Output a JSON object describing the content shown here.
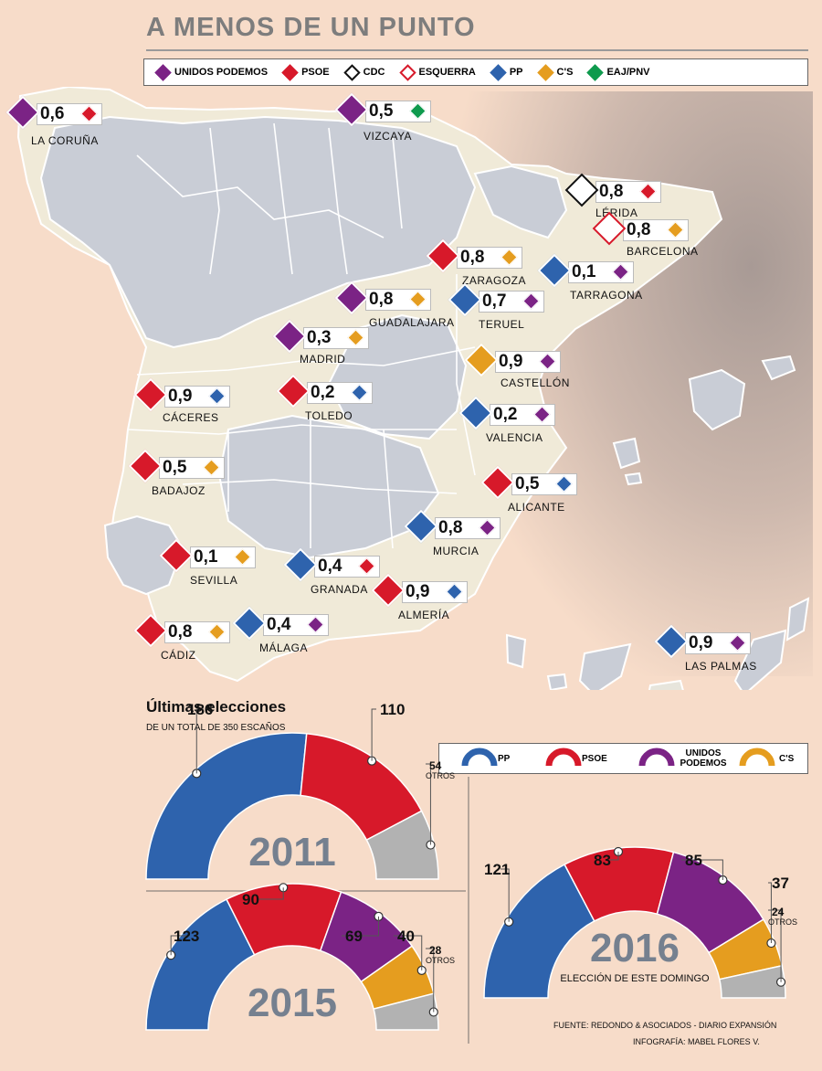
{
  "title": "A MENOS DE UN PUNTO",
  "colors": {
    "unidos_podemos": "#7b2385",
    "psoe": "#d7192a",
    "cdc": "#ffffff",
    "esquerra": "#ffffff",
    "pp": "#2e63ad",
    "cs": "#e59d1f",
    "eaj_pnv": "#0e9a4d",
    "otros": "#b2b2b2"
  },
  "legend": [
    {
      "label": "UNIDOS PODEMOS",
      "color": "#7b2385",
      "border": "#7b2385"
    },
    {
      "label": "PSOE",
      "color": "#d7192a",
      "border": "#d7192a"
    },
    {
      "label": "CDC",
      "color": "#ffffff",
      "border": "#111111"
    },
    {
      "label": "ESQUERRA",
      "color": "#ffffff",
      "border": "#d7192a"
    },
    {
      "label": "PP",
      "color": "#2e63ad",
      "border": "#2e63ad"
    },
    {
      "label": "C'S",
      "color": "#e59d1f",
      "border": "#e59d1f"
    },
    {
      "label": "EAJ/PNV",
      "color": "#0e9a4d",
      "border": "#0e9a4d"
    }
  ],
  "provinces": [
    {
      "city": "LA CORUÑA",
      "value": "0,6",
      "leader": "unidos_podemos",
      "second": "psoe"
    },
    {
      "city": "VIZCAYA",
      "value": "0,5",
      "leader": "unidos_podemos",
      "second": "eaj_pnv"
    },
    {
      "city": "LÉRIDA",
      "value": "0,8",
      "leader": "cdc",
      "second": "psoe"
    },
    {
      "city": "BARCELONA",
      "value": "0,8",
      "leader": "esquerra",
      "second": "cs"
    },
    {
      "city": "ZARAGOZA",
      "value": "0,8",
      "leader": "psoe",
      "second": "cs"
    },
    {
      "city": "TARRAGONA",
      "value": "0,1",
      "leader": "pp",
      "second": "unidos_podemos"
    },
    {
      "city": "GUADALAJARA",
      "value": "0,8",
      "leader": "unidos_podemos",
      "second": "cs"
    },
    {
      "city": "TERUEL",
      "value": "0,7",
      "leader": "pp",
      "second": "unidos_podemos"
    },
    {
      "city": "MADRID",
      "value": "0,3",
      "leader": "unidos_podemos",
      "second": "cs"
    },
    {
      "city": "CASTELLÓN",
      "value": "0,9",
      "leader": "cs",
      "second": "unidos_podemos"
    },
    {
      "city": "CÁCERES",
      "value": "0,9",
      "leader": "psoe",
      "second": "pp"
    },
    {
      "city": "TOLEDO",
      "value": "0,2",
      "leader": "psoe",
      "second": "pp"
    },
    {
      "city": "VALENCIA",
      "value": "0,2",
      "leader": "pp",
      "second": "unidos_podemos"
    },
    {
      "city": "BADAJOZ",
      "value": "0,5",
      "leader": "psoe",
      "second": "cs"
    },
    {
      "city": "ALICANTE",
      "value": "0,5",
      "leader": "psoe",
      "second": "pp"
    },
    {
      "city": "MURCIA",
      "value": "0,8",
      "leader": "pp",
      "second": "unidos_podemos"
    },
    {
      "city": "SEVILLA",
      "value": "0,1",
      "leader": "psoe",
      "second": "cs"
    },
    {
      "city": "GRANADA",
      "value": "0,4",
      "leader": "pp",
      "second": "psoe"
    },
    {
      "city": "ALMERÍA",
      "value": "0,9",
      "leader": "psoe",
      "second": "pp"
    },
    {
      "city": "CÁDIZ",
      "value": "0,8",
      "leader": "psoe",
      "second": "cs"
    },
    {
      "city": "MÁLAGA",
      "value": "0,4",
      "leader": "pp",
      "second": "unidos_podemos"
    },
    {
      "city": "LAS PALMAS",
      "value": "0,9",
      "leader": "pp",
      "second": "unidos_podemos"
    }
  ],
  "elections_title": "Últimas elecciones",
  "elections_subtitle": "DE UN TOTAL DE 350 ESCAÑOS",
  "legend2": [
    {
      "label": "PP",
      "color": "#2e63ad"
    },
    {
      "label": "PSOE",
      "color": "#d7192a"
    },
    {
      "label": "UNIDOS PODEMOS",
      "color": "#7b2385"
    },
    {
      "label": "C'S",
      "color": "#e59d1f"
    }
  ],
  "chart_data": [
    {
      "type": "semicircle",
      "title": "2011",
      "total": 350,
      "series": [
        {
          "name": "PP",
          "value": 186,
          "label": "186",
          "color": "#2e63ad"
        },
        {
          "name": "PSOE",
          "value": 110,
          "label": "110",
          "color": "#d7192a"
        },
        {
          "name": "OTROS",
          "value": 54,
          "label": "54",
          "color": "#b2b2b2"
        }
      ]
    },
    {
      "type": "semicircle",
      "title": "2015",
      "total": 350,
      "series": [
        {
          "name": "PP",
          "value": 123,
          "label": "123",
          "color": "#2e63ad"
        },
        {
          "name": "PSOE",
          "value": 90,
          "label": "90",
          "color": "#d7192a"
        },
        {
          "name": "UNIDOS PODEMOS",
          "value": 69,
          "label": "69",
          "color": "#7b2385"
        },
        {
          "name": "C'S",
          "value": 40,
          "label": "40",
          "color": "#e59d1f"
        },
        {
          "name": "OTROS",
          "value": 28,
          "label": "28",
          "color": "#b2b2b2"
        }
      ]
    },
    {
      "type": "semicircle",
      "title": "2016",
      "subtitle": "ELECCIÓN DE ESTE DOMINGO",
      "total": 350,
      "series": [
        {
          "name": "PP",
          "value": 121,
          "label": "121",
          "color": "#2e63ad"
        },
        {
          "name": "PSOE",
          "value": 83,
          "label": "83",
          "color": "#d7192a"
        },
        {
          "name": "UNIDOS PODEMOS",
          "value": 85,
          "label": "85",
          "color": "#7b2385"
        },
        {
          "name": "C'S",
          "value": 37,
          "label": "37",
          "color": "#e59d1f"
        },
        {
          "name": "OTROS",
          "value": 24,
          "label": "24",
          "color": "#b2b2b2"
        }
      ]
    }
  ],
  "otros_label": "OTROS",
  "source": "FUENTE: REDONDO & ASOCIADOS - DIARIO EXPANSIÓN",
  "credit": "INFOGRAFÍA: MABEL FLORES V."
}
